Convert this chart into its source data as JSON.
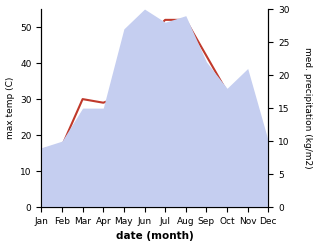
{
  "months": [
    "Jan",
    "Feb",
    "Mar",
    "Apr",
    "May",
    "Jun",
    "Jul",
    "Aug",
    "Sep",
    "Oct",
    "Nov",
    "Dec"
  ],
  "temperature": [
    16,
    17,
    30,
    29,
    31,
    46,
    52,
    52,
    42,
    32,
    18,
    17
  ],
  "precipitation": [
    9,
    10,
    15,
    15,
    27,
    30,
    28,
    29,
    22,
    18,
    21,
    10
  ],
  "temp_color": "#c0392b",
  "precip_fill_color": "#c5cef0",
  "temp_ylim": [
    0,
    55
  ],
  "precip_ylim": [
    0,
    30
  ],
  "temp_yticks": [
    0,
    10,
    20,
    30,
    40,
    50
  ],
  "precip_yticks": [
    0,
    5,
    10,
    15,
    20,
    25,
    30
  ],
  "xlabel": "date (month)",
  "ylabel_left": "max temp (C)",
  "ylabel_right": "med. precipitation (kg/m2)"
}
